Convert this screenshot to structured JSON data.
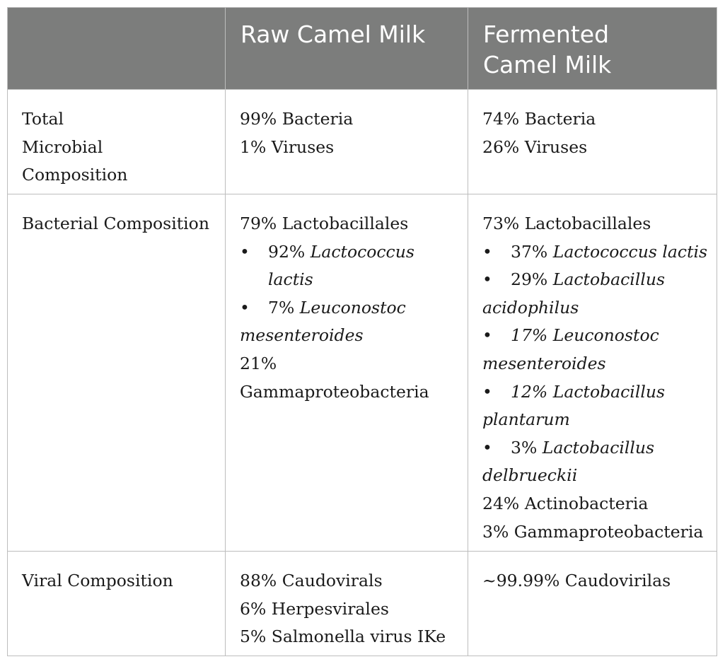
{
  "header": {
    "col0": "",
    "col1": "Raw Camel Milk",
    "col2_line1": "Fermented",
    "col2_line2": "Camel Milk"
  },
  "rows": [
    {
      "label_lines": [
        "Total",
        "Microbial",
        "Composition"
      ],
      "raw": [
        "99% Bacteria",
        "1% Viruses"
      ],
      "fermented": [
        "74% Bacteria",
        "26% Viruses"
      ]
    },
    {
      "label_lines": [
        "Bacterial Composition"
      ],
      "raw": {
        "top": "79% Lactobacillales",
        "bullets": [
          {
            "pct": "92%",
            "species": "Lactococcus lactis"
          },
          {
            "pct": "7%",
            "species": "Leuconostoc mesenteroides"
          }
        ],
        "after_line1": "21%",
        "after_line2": "Gammaproteobacteria"
      },
      "fermented": {
        "top": "73% Lactobacillales",
        "bullets": [
          {
            "pct": "37%",
            "species": "Lactococcus lactis"
          },
          {
            "pct": "29%",
            "species": "Lactobacillus acidophilus"
          },
          {
            "pct": "17%",
            "species": "Leuconostoc mesenteroides"
          },
          {
            "pct": "12%",
            "species": "Lactobacillus plantarum"
          },
          {
            "pct": "3%",
            "species": "Lactobacillus delbrueckii"
          }
        ],
        "after": [
          "24% Actinobacteria",
          "3% Gammaproteobacteria"
        ]
      }
    },
    {
      "label_lines": [
        "Viral Composition"
      ],
      "raw": [
        "88% Caudovirals",
        "6% Herpesvirales",
        "5% Salmonella virus IKe"
      ],
      "fermented": [
        "~99.99% Caudovirilas"
      ]
    }
  ],
  "bullet_glyph": "•"
}
